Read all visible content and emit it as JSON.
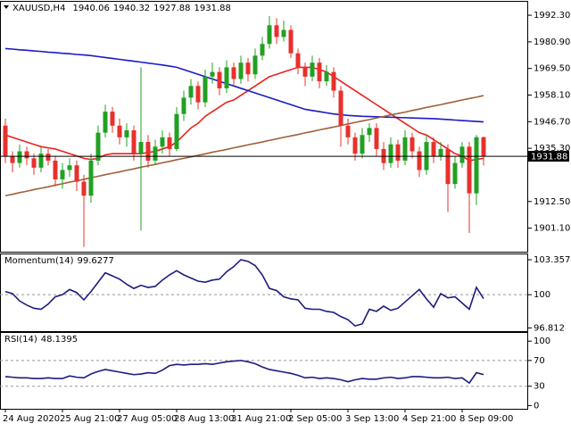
{
  "chart_data": {
    "type": "candlestick",
    "symbol": "XAUUSD,H4",
    "categories": [
      "24 Aug 2020",
      null,
      null,
      null,
      null,
      null,
      null,
      null,
      "25 Aug 21:00",
      null,
      null,
      null,
      null,
      null,
      null,
      null,
      "27 Aug 05:00",
      null,
      null,
      null,
      null,
      null,
      null,
      null,
      "28 Aug 13:00",
      null,
      null,
      null,
      null,
      null,
      null,
      null,
      "31 Aug 21:00",
      null,
      null,
      null,
      null,
      null,
      null,
      null,
      "2 Sep 05:00",
      null,
      null,
      null,
      null,
      null,
      null,
      null,
      "3 Sep 13:00",
      null,
      null,
      null,
      null,
      null,
      null,
      null,
      "4 Sep 21:00",
      null,
      null,
      null,
      null,
      null,
      null,
      null,
      "8 Sep 09:00",
      null,
      null,
      null
    ],
    "ohlc": [
      [
        1945,
        1948,
        1929,
        1932
      ],
      [
        1932,
        1934,
        1925,
        1929
      ],
      [
        1929,
        1937,
        1927,
        1934
      ],
      [
        1934,
        1936,
        1928,
        1931
      ],
      [
        1931,
        1933,
        1924,
        1927
      ],
      [
        1927,
        1936,
        1925,
        1933
      ],
      [
        1933,
        1935,
        1928,
        1930
      ],
      [
        1930,
        1932,
        1919,
        1922
      ],
      [
        1922,
        1929,
        1918,
        1926
      ],
      [
        1926,
        1931,
        1923,
        1928
      ],
      [
        1928,
        1930,
        1917,
        1921
      ],
      [
        1921,
        1924,
        1893,
        1915
      ],
      [
        1915,
        1933,
        1912,
        1930
      ],
      [
        1930,
        1945,
        1928,
        1942
      ],
      [
        1942,
        1954,
        1940,
        1951
      ],
      [
        1951,
        1953,
        1942,
        1945
      ],
      [
        1945,
        1948,
        1937,
        1940
      ],
      [
        1940,
        1946,
        1936,
        1943
      ],
      [
        1943,
        1945,
        1930,
        1933
      ],
      [
        1933,
        1970,
        1900,
        1938
      ],
      [
        1938,
        1941,
        1927,
        1930
      ],
      [
        1930,
        1939,
        1928,
        1936
      ],
      [
        1936,
        1943,
        1933,
        1940
      ],
      [
        1940,
        1942,
        1932,
        1935
      ],
      [
        1935,
        1953,
        1934,
        1950
      ],
      [
        1950,
        1960,
        1947,
        1957
      ],
      [
        1957,
        1965,
        1954,
        1962
      ],
      [
        1962,
        1964,
        1952,
        1955
      ],
      [
        1955,
        1969,
        1953,
        1966
      ],
      [
        1966,
        1972,
        1963,
        1968
      ],
      [
        1968,
        1970,
        1958,
        1961
      ],
      [
        1961,
        1973,
        1959,
        1970
      ],
      [
        1970,
        1972,
        1962,
        1965
      ],
      [
        1965,
        1975,
        1963,
        1972
      ],
      [
        1972,
        1974,
        1964,
        1967
      ],
      [
        1967,
        1978,
        1965,
        1975
      ],
      [
        1975,
        1983,
        1973,
        1980
      ],
      [
        1980,
        1992,
        1978,
        1988
      ],
      [
        1988,
        1991,
        1980,
        1983
      ],
      [
        1983,
        1990,
        1981,
        1986
      ],
      [
        1986,
        1988,
        1974,
        1976
      ],
      [
        1976,
        1978,
        1967,
        1970
      ],
      [
        1970,
        1972,
        1962,
        1966
      ],
      [
        1966,
        1975,
        1964,
        1972
      ],
      [
        1972,
        1974,
        1961,
        1964
      ],
      [
        1964,
        1971,
        1962,
        1968
      ],
      [
        1968,
        1970,
        1957,
        1960
      ],
      [
        1960,
        1962,
        1936,
        1945
      ],
      [
        1945,
        1948,
        1937,
        1940
      ],
      [
        1940,
        1942,
        1930,
        1933
      ],
      [
        1933,
        1944,
        1931,
        1941
      ],
      [
        1941,
        1946,
        1938,
        1944
      ],
      [
        1944,
        1946,
        1932,
        1935
      ],
      [
        1935,
        1938,
        1926,
        1929
      ],
      [
        1929,
        1940,
        1927,
        1937
      ],
      [
        1937,
        1939,
        1927,
        1930
      ],
      [
        1930,
        1943,
        1928,
        1940
      ],
      [
        1940,
        1942,
        1931,
        1934
      ],
      [
        1934,
        1936,
        1923,
        1926
      ],
      [
        1926,
        1941,
        1924,
        1938
      ],
      [
        1938,
        1940,
        1929,
        1932
      ],
      [
        1932,
        1938,
        1930,
        1935
      ],
      [
        1935,
        1937,
        1908,
        1920
      ],
      [
        1920,
        1932,
        1918,
        1929
      ],
      [
        1929,
        1938,
        1927,
        1936
      ],
      [
        1936,
        1938,
        1899,
        1916
      ],
      [
        1916,
        1941,
        1911,
        1940.06
      ],
      [
        1940.06,
        1940.32,
        1927.88,
        1931.88
      ]
    ],
    "up_color": "#22a022",
    "down_color": "#e8302c",
    "ylim": [
      1891,
      1997.3
    ],
    "yticks": [
      {
        "value": 1992.3,
        "label": "1992.30"
      },
      {
        "value": 1980.9,
        "label": "1980.90"
      },
      {
        "value": 1969.5,
        "label": "1969.50"
      },
      {
        "value": 1958.1,
        "label": "1958.10"
      },
      {
        "value": 1946.7,
        "label": "1946.70"
      },
      {
        "value": 1935.3,
        "label": "1935.30"
      },
      {
        "value": 1912.5,
        "label": "1912.50"
      },
      {
        "value": 1901.1,
        "label": "1901.10"
      }
    ],
    "grid": false,
    "overlays": [
      {
        "color": "#e8221e",
        "values": [
          1941,
          1940,
          1939,
          1938,
          1937,
          1936,
          1935.5,
          1935,
          1934,
          1933,
          1932,
          1931,
          1930.5,
          1931,
          1932.5,
          1933,
          1933,
          1933,
          1933,
          1933,
          1933.5,
          1934,
          1935,
          1936,
          1938,
          1941,
          1944,
          1946,
          1949,
          1951,
          1953,
          1955,
          1956,
          1958,
          1960,
          1962,
          1964,
          1966,
          1967,
          1968,
          1969,
          1970,
          1970,
          1970,
          1969,
          1968,
          1966,
          1964,
          1962,
          1960,
          1958,
          1956,
          1954,
          1952,
          1950,
          1948,
          1946,
          1944,
          1942,
          1941,
          1939,
          1937,
          1935,
          1933,
          1932,
          1930,
          1930.5,
          1931
        ]
      },
      {
        "color": "#1a1ac8",
        "values": [
          1978,
          1977.8,
          1977.5,
          1977.3,
          1977,
          1976.8,
          1976.5,
          1976.3,
          1976,
          1975.8,
          1975.5,
          1975.3,
          1975,
          1974.6,
          1974.2,
          1973.8,
          1973.4,
          1973,
          1972.6,
          1972.2,
          1971.8,
          1971.4,
          1971,
          1970.5,
          1970,
          1969,
          1968,
          1967,
          1966,
          1965,
          1964,
          1963,
          1962,
          1961,
          1960,
          1959,
          1958,
          1957,
          1956,
          1955,
          1954,
          1953,
          1952,
          1951.5,
          1951,
          1950.5,
          1950,
          1949.7,
          1949.4,
          1949.2,
          1949,
          1948.9,
          1948.8,
          1948.7,
          1948.6,
          1948.5,
          1948.4,
          1948.3,
          1948.2,
          1948.1,
          1948,
          1947.8,
          1947.6,
          1947.4,
          1947.2,
          1947,
          1946.8,
          1946.6
        ]
      },
      {
        "color": "#a0603a",
        "values": [
          1915,
          1915.6,
          1916.3,
          1916.9,
          1917.6,
          1918.2,
          1918.8,
          1919.5,
          1920.1,
          1920.8,
          1921.4,
          1922,
          1922.7,
          1923.3,
          1924,
          1924.6,
          1925.2,
          1925.9,
          1926.5,
          1927.2,
          1927.8,
          1928.4,
          1929.1,
          1929.7,
          1930.4,
          1931,
          1931.6,
          1932.3,
          1932.9,
          1933.6,
          1934.2,
          1934.8,
          1935.5,
          1936.1,
          1936.8,
          1937.4,
          1938,
          1938.7,
          1939.3,
          1940,
          1940.6,
          1941.2,
          1941.9,
          1942.5,
          1943.2,
          1943.8,
          1944.4,
          1945.1,
          1945.7,
          1946.4,
          1947,
          1947.6,
          1948.3,
          1948.9,
          1949.6,
          1950.2,
          1950.8,
          1951.5,
          1952.1,
          1952.8,
          1953.4,
          1954,
          1954.7,
          1955.3,
          1956,
          1956.6,
          1957.2,
          1957.9
        ]
      }
    ],
    "indicators": [
      {
        "type": "line",
        "name": "Momentum(14)",
        "color": "#1c1c80",
        "values": [
          100.3,
          100.1,
          99.4,
          99.0,
          98.7,
          98.6,
          99.1,
          99.8,
          100.0,
          100.5,
          100.2,
          99.5,
          100.3,
          101.2,
          102.1,
          101.8,
          101.5,
          101.0,
          100.6,
          100.9,
          100.7,
          100.8,
          101.4,
          101.9,
          102.3,
          101.9,
          101.6,
          101.3,
          101.2,
          101.4,
          101.5,
          102.2,
          102.7,
          103.36,
          103.2,
          102.8,
          101.9,
          100.6,
          100.4,
          99.8,
          99.6,
          99.5,
          98.7,
          98.6,
          98.6,
          98.4,
          98.3,
          97.9,
          97.6,
          97.0,
          97.2,
          98.6,
          98.4,
          98.9,
          98.5,
          98.7,
          99.3,
          99.9,
          100.5,
          99.6,
          98.8,
          100.1,
          99.7,
          99.8,
          99.2,
          98.6,
          100.7,
          99.6277
        ],
        "ylim": [
          96.5,
          103.7
        ],
        "yticks": [
          103.3574,
          100,
          96.812
        ],
        "levels": [
          100
        ]
      },
      {
        "type": "line",
        "name": "RSI(14)",
        "color": "#1c1c80",
        "values": [
          45,
          44,
          43,
          43,
          42,
          42,
          43,
          42,
          42,
          46,
          44,
          43,
          49,
          53,
          56,
          54,
          52,
          50,
          48,
          49,
          51,
          50,
          55,
          62,
          64,
          63,
          64,
          64,
          65,
          64,
          66,
          68,
          69,
          70,
          68,
          65,
          60,
          56,
          54,
          52,
          50,
          47,
          43,
          44,
          42,
          43,
          42,
          40,
          37,
          40,
          42,
          41,
          41,
          43,
          44,
          42,
          43,
          45,
          45,
          44,
          43,
          43,
          44,
          42,
          43,
          35,
          51,
          48.1395
        ],
        "ylim": [
          -5,
          110
        ],
        "yticks": [
          100,
          70,
          30,
          0
        ],
        "levels": [
          70,
          30
        ]
      }
    ]
  }
}
